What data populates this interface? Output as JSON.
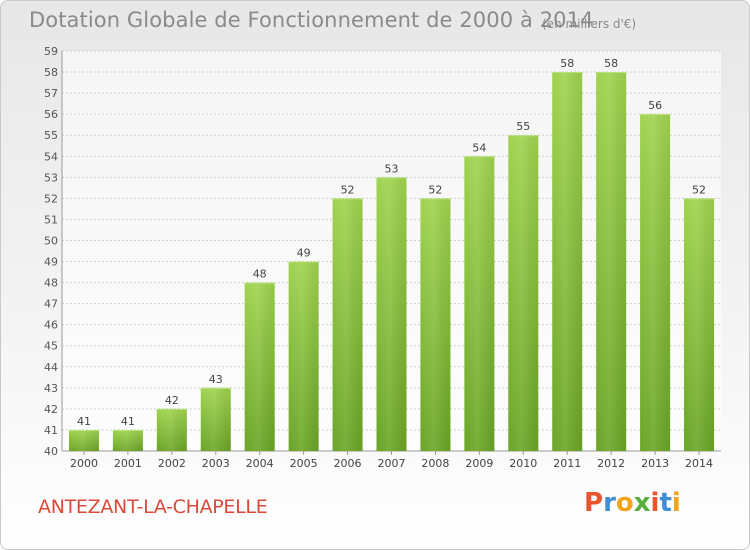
{
  "chart_data": {
    "type": "bar",
    "title": "Dotation Globale de Fonctionnement de 2000 à 2014",
    "unit_note": "(en milliers d'€)",
    "categories": [
      "2000",
      "2001",
      "2002",
      "2003",
      "2004",
      "2005",
      "2006",
      "2007",
      "2008",
      "2009",
      "2010",
      "2011",
      "2012",
      "2013",
      "2014"
    ],
    "values": [
      41,
      41,
      42,
      43,
      48,
      49,
      52,
      53,
      52,
      54,
      55,
      58,
      58,
      56,
      52
    ],
    "ylim": [
      40,
      59
    ],
    "yticks": [
      40,
      41,
      42,
      43,
      44,
      45,
      46,
      47,
      48,
      49,
      50,
      51,
      52,
      53,
      54,
      55,
      56,
      57,
      58,
      59
    ],
    "xlabel": "",
    "ylabel": "",
    "grid": true,
    "bar_color": "#8dc63f"
  },
  "footer": {
    "city": "ANTEZANT-LA-CHAPELLE",
    "logo_text": "Proxiti",
    "logo_colors": [
      "#e8542e",
      "#3f8fd6",
      "#f2a41c",
      "#5aae3c",
      "#e8542e",
      "#3f8fd6",
      "#f2a41c"
    ]
  }
}
